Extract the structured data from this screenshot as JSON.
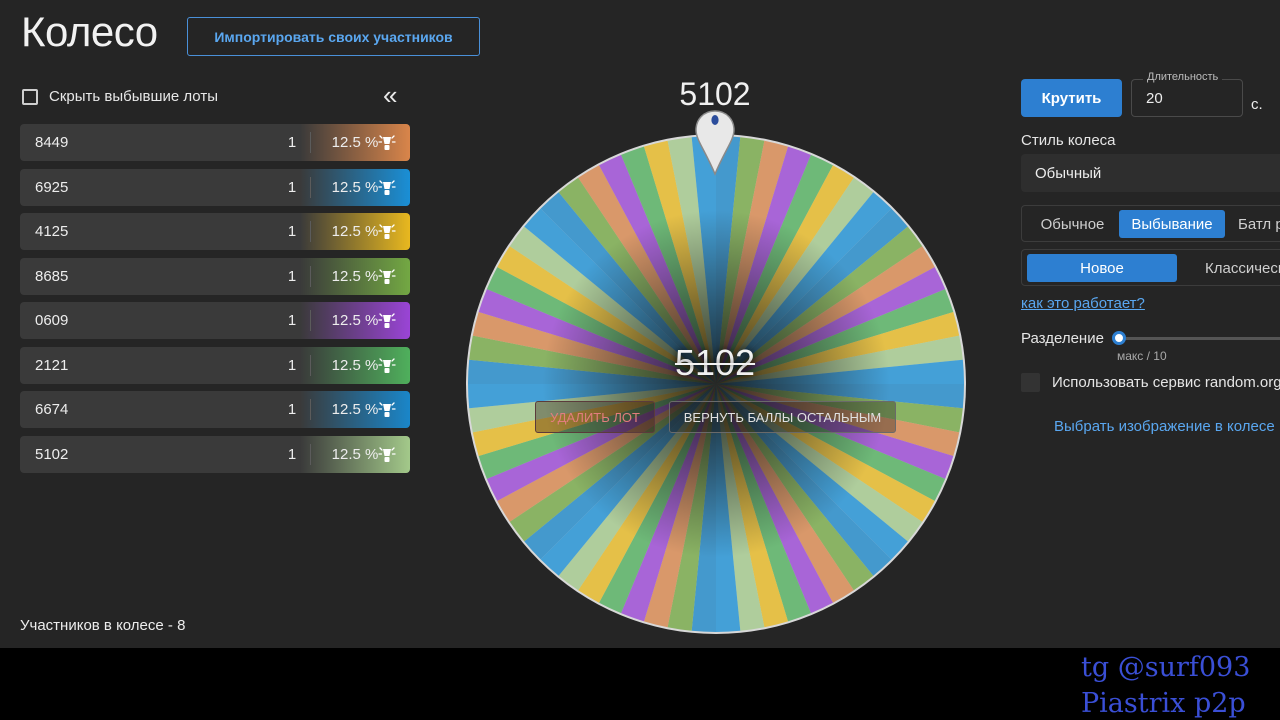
{
  "header": {
    "title": "Колесо",
    "import_button": "Импортировать своих участников"
  },
  "sidebar": {
    "hide_eliminated_label": "Скрыть выбывшие лоты",
    "collapse_icon": "double-chevron-left-icon",
    "lots": [
      {
        "name": "8449",
        "count": "1",
        "percent": "12.5 %",
        "color": "#d9854a"
      },
      {
        "name": "6925",
        "count": "1",
        "percent": "12.5 %",
        "color": "#1a8fd6"
      },
      {
        "name": "4125",
        "count": "1",
        "percent": "12.5 %",
        "color": "#e8b81f"
      },
      {
        "name": "8685",
        "count": "1",
        "percent": "12.5 %",
        "color": "#73a843"
      },
      {
        "name": "0609",
        "count": "1",
        "percent": "12.5 %",
        "color": "#9a44d6"
      },
      {
        "name": "2121",
        "count": "1",
        "percent": "12.5 %",
        "color": "#4fb05c"
      },
      {
        "name": "6674",
        "count": "1",
        "percent": "12.5 %",
        "color": "#1a86c9"
      },
      {
        "name": "5102",
        "count": "1",
        "percent": "12.5 %",
        "color": "#a3c98a"
      }
    ],
    "participants_text": "Участников в колесе - 8"
  },
  "wheel": {
    "winner_top": "5102",
    "center_label": "5102",
    "delete_button": "УДАЛИТЬ ЛОТ",
    "return_button": "ВЕРНУТЬ БАЛЛЫ ОСТАЛЬНЫМ",
    "segment_colors": [
      "#1a86c9",
      "#73a843",
      "#d9854a",
      "#9a44d6",
      "#4fb05c",
      "#e8b81f",
      "#a3c98a",
      "#1a8fd6"
    ]
  },
  "controls": {
    "spin_button": "Крутить",
    "duration_label": "Длительность",
    "duration_value": "20",
    "duration_unit": "с.",
    "style_label": "Стиль колеса",
    "style_value": "Обычный",
    "modes": [
      "Обычное",
      "Выбывание",
      "Батл р"
    ],
    "active_mode": "Выбывание",
    "elimination_types": [
      "Новое",
      "Классическ"
    ],
    "how_link": "как это работает?",
    "split_label": "Разделение",
    "split_hint": "макс / 10",
    "random_org_label": "Использовать сервис random.org",
    "image_link": "Выбрать изображение в колесе"
  },
  "watermark": {
    "line1": "tg @surf093",
    "line2": "Piastrix p2p"
  }
}
